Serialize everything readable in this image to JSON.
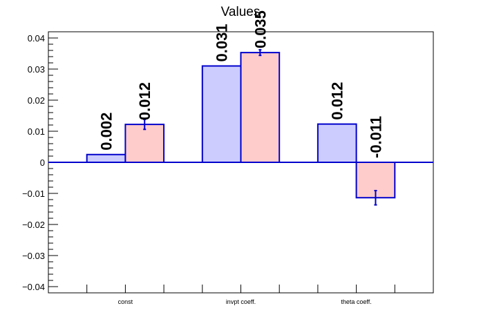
{
  "chart_data": {
    "type": "bar",
    "title": "Values",
    "categories": [
      "const",
      "invpt coeff.",
      "theta coeff."
    ],
    "series": [
      {
        "color": "#ccccff",
        "values": [
          0.0025,
          0.031,
          0.0123
        ],
        "value_labels": [
          "0.002",
          "0.031",
          "0.012"
        ],
        "errors": [
          null,
          null,
          null
        ]
      },
      {
        "color": "#ffcccc",
        "values": [
          0.0122,
          0.0353,
          -0.0114
        ],
        "value_labels": [
          "0.012",
          "0.035",
          "-0.011"
        ],
        "errors": [
          0.0016,
          0.0009,
          0.0023
        ]
      }
    ],
    "outline_color": "#0000cc",
    "ylim": [
      -0.042,
      0.042
    ],
    "yticks": [
      0.04,
      0.03,
      0.02,
      0.01,
      0,
      -0.01,
      -0.02,
      -0.03,
      -0.04
    ],
    "ytick_labels": [
      "0.04",
      "0.03",
      "0.02",
      "0.01",
      "0",
      "−0.01",
      "−0.02",
      "−0.03",
      "−0.04"
    ],
    "grid": false,
    "legend": "none"
  }
}
